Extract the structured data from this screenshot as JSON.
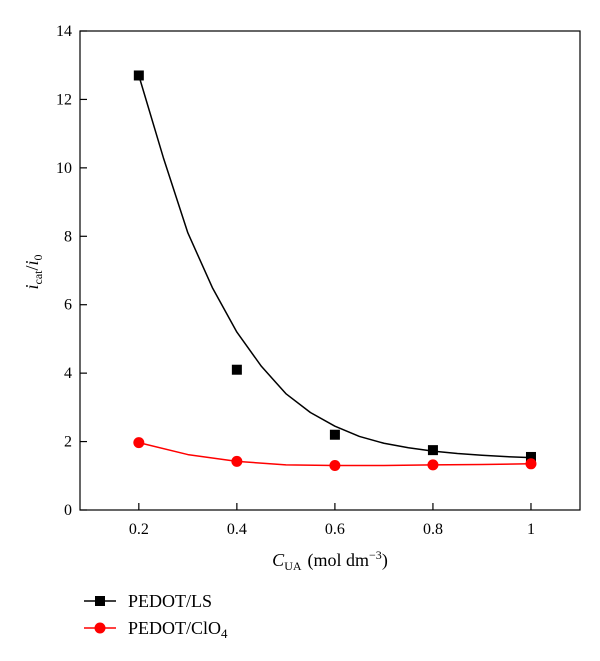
{
  "chart_data": {
    "type": "scatter",
    "xlabel": {
      "main": "C",
      "sub": "UA",
      "unit_pre": "(mol dm",
      "unit_sup": "−3",
      "unit_post": ")"
    },
    "ylabel": {
      "a": "i",
      "a_sub": "cat",
      "slash": "/",
      "b": "i",
      "b_sub": "0"
    },
    "xlim": [
      0.08,
      1.1
    ],
    "ylim": [
      0,
      14
    ],
    "x_ticks": [
      0.2,
      0.4,
      0.6,
      0.8,
      1.0
    ],
    "x_tick_labels": [
      "0.2",
      "0.4",
      "0.6",
      "0.8",
      "1"
    ],
    "y_ticks": [
      0,
      2,
      4,
      6,
      8,
      10,
      12,
      14
    ],
    "y_tick_labels": [
      "0",
      "2",
      "4",
      "6",
      "8",
      "10",
      "12",
      "14"
    ],
    "grid": false,
    "legend_position": "below-plot-left",
    "series": [
      {
        "name": "PEDOT/LS",
        "color": "#000000",
        "marker": "square",
        "x": [
          0.2,
          0.4,
          0.6,
          0.8,
          1.0
        ],
        "y": [
          12.7,
          4.1,
          2.2,
          1.75,
          1.55
        ],
        "fit": {
          "x": [
            0.2,
            0.25,
            0.3,
            0.35,
            0.4,
            0.45,
            0.5,
            0.55,
            0.6,
            0.65,
            0.7,
            0.75,
            0.8,
            0.85,
            0.9,
            0.95,
            1.0
          ],
          "y": [
            12.7,
            10.3,
            8.1,
            6.5,
            5.2,
            4.2,
            3.4,
            2.85,
            2.45,
            2.15,
            1.95,
            1.82,
            1.72,
            1.65,
            1.6,
            1.56,
            1.53
          ]
        }
      },
      {
        "name": "PEDOT/ClO4",
        "color": "#ff0000",
        "marker": "circle",
        "x": [
          0.2,
          0.4,
          0.6,
          0.8,
          1.0
        ],
        "y": [
          1.97,
          1.42,
          1.3,
          1.32,
          1.35
        ],
        "fit": {
          "x": [
            0.2,
            0.3,
            0.4,
            0.5,
            0.6,
            0.7,
            0.8,
            0.9,
            1.0
          ],
          "y": [
            1.97,
            1.62,
            1.42,
            1.32,
            1.3,
            1.3,
            1.32,
            1.33,
            1.35
          ]
        }
      }
    ],
    "legend": [
      {
        "label_pre": "PEDOT/",
        "label_main": "LS",
        "label_sub": ""
      },
      {
        "label_pre": "PEDOT/",
        "label_main": "ClO",
        "label_sub": "4"
      }
    ]
  }
}
